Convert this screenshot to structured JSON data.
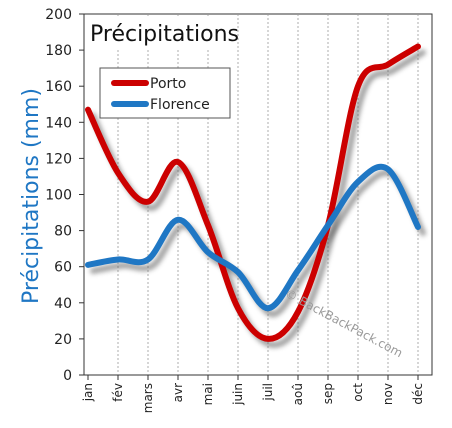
{
  "chart_data": {
    "type": "line",
    "title": "Précipitations",
    "ylabel": "Précipitations (mm)",
    "xlabel": "",
    "categories": [
      "jan",
      "fév",
      "mars",
      "avr",
      "mai",
      "juin",
      "juil",
      "aoû",
      "sep",
      "oct",
      "nov",
      "déc"
    ],
    "ylim": [
      0,
      200
    ],
    "yticks": [
      0,
      20,
      40,
      60,
      80,
      100,
      120,
      140,
      160,
      180,
      200
    ],
    "grid": "vertical",
    "legend_position": "top-left",
    "series": [
      {
        "name": "Porto",
        "color": "#cc0000",
        "values": [
          147,
          112,
          96,
          118,
          83,
          37,
          20,
          35,
          83,
          160,
          172,
          182
        ]
      },
      {
        "name": "Florence",
        "color": "#1f77c4",
        "values": [
          61,
          64,
          64,
          86,
          68,
          57,
          37,
          58,
          83,
          107,
          114,
          82
        ]
      }
    ],
    "watermark": "© BackBackPack.com"
  }
}
